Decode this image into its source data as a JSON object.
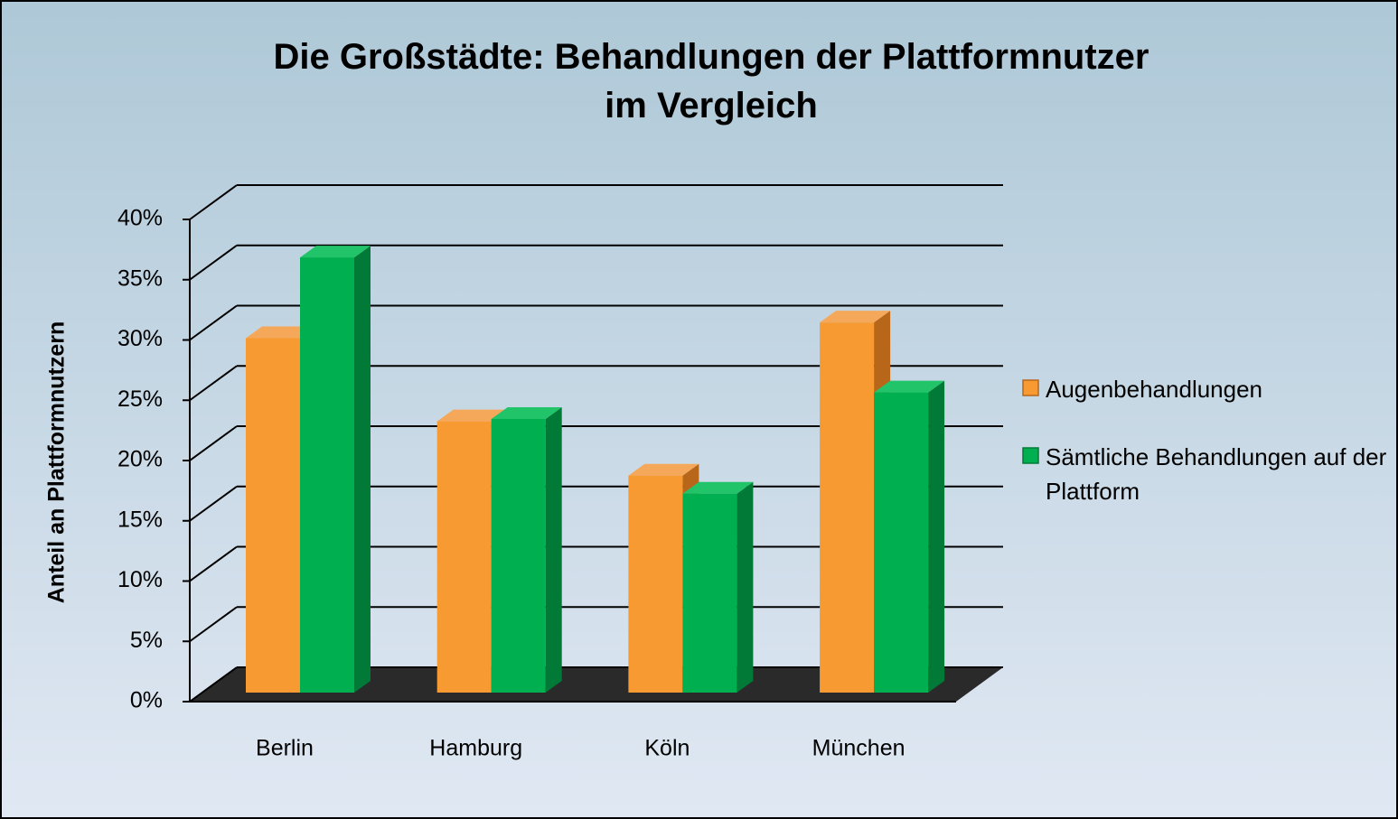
{
  "chart_data": {
    "type": "bar3d",
    "title": "Die Großstädte: Behandlungen der Plattformnutzer\nim Vergleich",
    "y_axis_label": "Anteil  an Plattformnutzern",
    "categories": [
      "Berlin",
      "Hamburg",
      "Köln",
      "München"
    ],
    "series": [
      {
        "name": "Augenbehandlungen",
        "color": "#f79a32",
        "values": [
          29.4,
          22.5,
          18.0,
          30.7
        ]
      },
      {
        "name": "Sämtliche Behandlungen auf der Plattform",
        "color": "#00b050",
        "values": [
          36.1,
          22.7,
          16.5,
          24.9
        ]
      }
    ],
    "ylim": [
      0,
      40
    ],
    "yticks": [
      {
        "value": 0,
        "label": "0%"
      },
      {
        "value": 5,
        "label": "5%"
      },
      {
        "value": 10,
        "label": "10%"
      },
      {
        "value": 15,
        "label": "15%"
      },
      {
        "value": 20,
        "label": "20%"
      },
      {
        "value": 25,
        "label": "25%"
      },
      {
        "value": 30,
        "label": "30%"
      },
      {
        "value": 35,
        "label": "35%"
      },
      {
        "value": 40,
        "label": "40%"
      }
    ],
    "grid": true,
    "legend": "right"
  }
}
